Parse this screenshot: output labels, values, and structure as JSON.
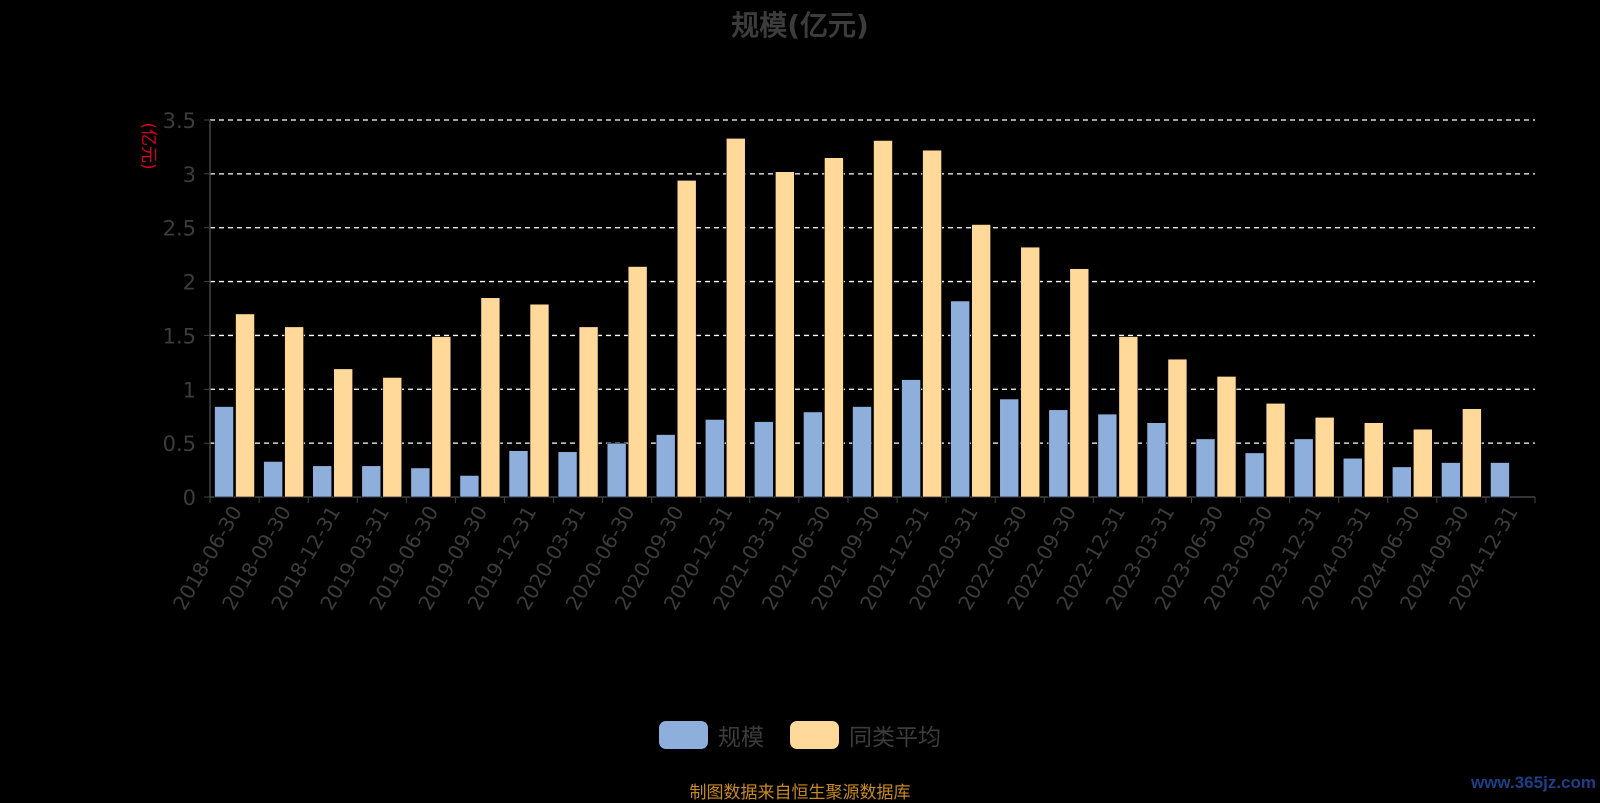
{
  "title": "规模(亿元)",
  "footer_note": "制图数据来自恒生聚源数据库",
  "watermark": "www.365jz.com",
  "chart_data": {
    "type": "bar",
    "title": "规模(亿元)",
    "ylabel": "(亿元)",
    "xlabel": "",
    "ylim": [
      0,
      3.5
    ],
    "yticks": [
      0,
      0.5,
      1,
      1.5,
      2,
      2.5,
      3,
      3.5
    ],
    "ytick_labels": [
      "0",
      "0.5",
      "1",
      "1.5",
      "2",
      "2.5",
      "3",
      "3.5"
    ],
    "grid": true,
    "legend_position": "bottom",
    "categories": [
      "2018-06-30",
      "2018-09-30",
      "2018-12-31",
      "2019-03-31",
      "2019-06-30",
      "2019-09-30",
      "2019-12-31",
      "2020-03-31",
      "2020-06-30",
      "2020-09-30",
      "2020-12-31",
      "2021-03-31",
      "2021-06-30",
      "2021-09-30",
      "2021-12-31",
      "2022-03-31",
      "2022-06-30",
      "2022-09-30",
      "2022-12-31",
      "2023-03-31",
      "2023-06-30",
      "2023-09-30",
      "2023-12-31",
      "2024-03-31",
      "2024-06-30",
      "2024-09-30",
      "2024-12-31"
    ],
    "series": [
      {
        "name": "规模",
        "color": "#8eaedb",
        "values": [
          0.84,
          0.33,
          0.29,
          0.29,
          0.27,
          0.2,
          0.43,
          0.42,
          0.5,
          0.58,
          0.72,
          0.7,
          0.79,
          0.84,
          1.09,
          1.82,
          0.91,
          0.81,
          0.77,
          0.69,
          0.54,
          0.41,
          0.54,
          0.36,
          0.28,
          0.32,
          0.32
        ]
      },
      {
        "name": "同类平均",
        "color": "#ffd99a",
        "values": [
          1.7,
          1.58,
          1.19,
          1.11,
          1.49,
          1.85,
          1.79,
          1.58,
          2.14,
          2.94,
          3.33,
          3.02,
          3.15,
          3.31,
          3.22,
          2.53,
          2.32,
          2.12,
          1.49,
          1.28,
          1.12,
          0.87,
          0.74,
          0.69,
          0.63,
          0.82,
          null
        ]
      }
    ]
  }
}
